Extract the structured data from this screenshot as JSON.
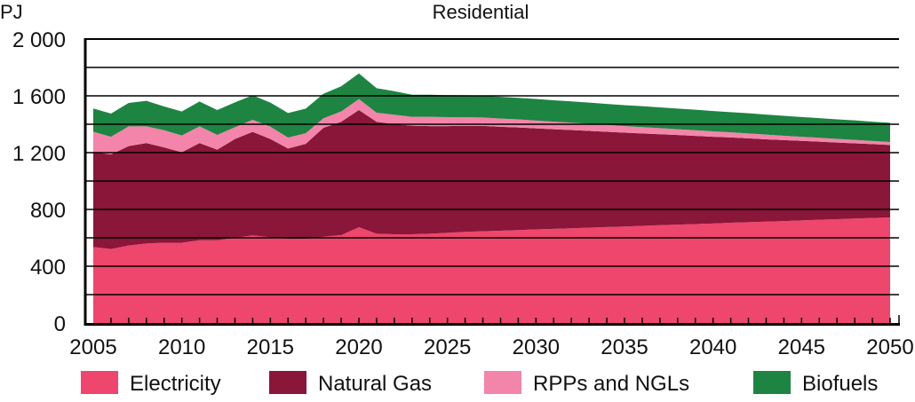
{
  "chart_data": {
    "type": "area",
    "stacked": true,
    "title": "Residential",
    "ylabel": "PJ",
    "xlabel": "",
    "ylim": [
      0,
      2000
    ],
    "xlim": [
      2005,
      2050
    ],
    "y_ticks": [
      0,
      400,
      800,
      1200,
      1600,
      2000
    ],
    "y_tick_labels": [
      "0",
      "400",
      "800",
      "1 200",
      "1 600",
      "2 000"
    ],
    "x_ticks": [
      2005,
      2010,
      2015,
      2020,
      2025,
      2030,
      2035,
      2040,
      2045,
      2050
    ],
    "x_tick_labels": [
      "2005",
      "2010",
      "2015",
      "2020",
      "2025",
      "2030",
      "2035",
      "2040",
      "2045",
      "2050"
    ],
    "grid": true,
    "legend_position": "bottom",
    "x": [
      2005,
      2006,
      2007,
      2008,
      2009,
      2010,
      2011,
      2012,
      2013,
      2014,
      2015,
      2016,
      2017,
      2018,
      2019,
      2020,
      2021,
      2022,
      2023,
      2024,
      2025,
      2026,
      2027,
      2028,
      2029,
      2030,
      2031,
      2032,
      2033,
      2034,
      2035,
      2036,
      2037,
      2038,
      2039,
      2040,
      2041,
      2042,
      2043,
      2044,
      2045,
      2046,
      2047,
      2048,
      2049,
      2050
    ],
    "series": [
      {
        "name": "Electricity",
        "color": "#ee466c",
        "values": [
          535,
          521,
          546,
          560,
          566,
          566,
          583,
          583,
          600,
          617,
          604,
          592,
          592,
          608,
          619,
          675,
          629,
          625,
          625,
          629,
          635,
          642,
          646,
          650,
          655,
          659,
          663,
          667,
          672,
          676,
          680,
          684,
          689,
          693,
          697,
          701,
          706,
          710,
          714,
          718,
          723,
          727,
          731,
          736,
          740,
          744
        ]
      },
      {
        "name": "Natural Gas",
        "color": "#8a1639",
        "values": [
          671,
          666,
          700,
          707,
          671,
          636,
          684,
          638,
          696,
          729,
          692,
          637,
          670,
          767,
          798,
          825,
          788,
          775,
          765,
          758,
          752,
          746,
          742,
          732,
          722,
          712,
          702,
          692,
          681,
          671,
          661,
          651,
          641,
          631,
          621,
          611,
          601,
          591,
          580,
          570,
          560,
          550,
          540,
          530,
          520,
          510
        ]
      },
      {
        "name": "RPPs and NGLs",
        "color": "#f285a9",
        "values": [
          142,
          125,
          139,
          118,
          121,
          119,
          118,
          104,
          83,
          85,
          87,
          77,
          75,
          67,
          73,
          77,
          64,
          67,
          62,
          65,
          63,
          61,
          60,
          58,
          57,
          55,
          53,
          52,
          50,
          48,
          46,
          45,
          43,
          41,
          40,
          38,
          36,
          34,
          33,
          31,
          29,
          28,
          26,
          24,
          22,
          21
        ]
      },
      {
        "name": "Biofuels",
        "color": "#1e8442",
        "values": [
          163,
          163,
          165,
          180,
          167,
          169,
          175,
          175,
          175,
          173,
          169,
          173,
          173,
          173,
          177,
          181,
          173,
          166,
          156,
          156,
          155,
          155,
          154,
          153,
          152,
          152,
          151,
          150,
          149,
          148,
          147,
          147,
          146,
          145,
          144,
          143,
          142,
          142,
          141,
          140,
          139,
          138,
          137,
          137,
          136,
          135
        ]
      }
    ]
  }
}
